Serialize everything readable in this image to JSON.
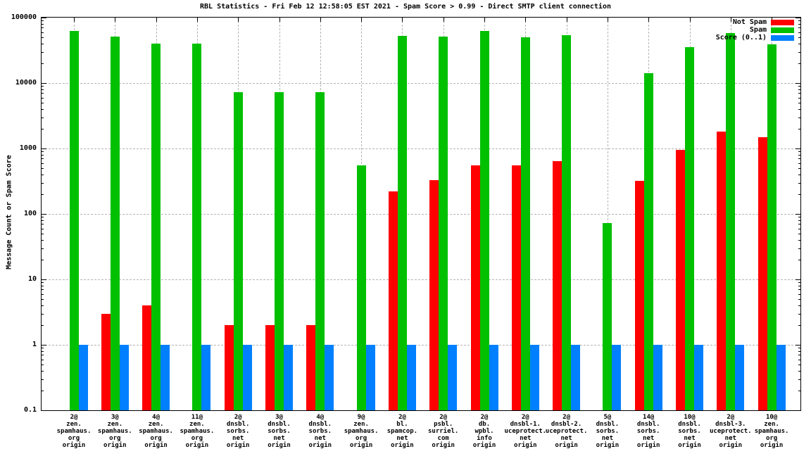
{
  "title": "RBL Statistics - Fri Feb 12 12:58:05 EST 2021 - Spam Score > 0.99 - Direct SMTP client connection",
  "chart_data": {
    "type": "bar",
    "title": "RBL Statistics - Fri Feb 12 12:58:05 EST 2021 - Spam Score > 0.99 - Direct SMTP client connection",
    "ylabel": "Message Count or Spam Score",
    "xlabel": "",
    "yscale": "log",
    "ylim": [
      0.1,
      100000
    ],
    "yticks": [
      "100000",
      "10000",
      "1000",
      "100",
      "10",
      "1",
      "0.1"
    ],
    "grid": true,
    "legend_position": "top-right-inside",
    "colors": {
      "not_spam": "#ff0000",
      "spam": "#00c000",
      "score": "#0080ff",
      "grid": "#b4b4b4"
    },
    "categories": [
      [
        "2@",
        "zen.",
        "spamhaus.",
        "org",
        "origin"
      ],
      [
        "3@",
        "zen.",
        "spamhaus.",
        "org",
        "origin"
      ],
      [
        "4@",
        "zen.",
        "spamhaus.",
        "org",
        "origin"
      ],
      [
        "11@",
        "zen.",
        "spamhaus.",
        "org",
        "origin"
      ],
      [
        "2@",
        "dnsbl.",
        "sorbs.",
        "net",
        "origin"
      ],
      [
        "3@",
        "dnsbl.",
        "sorbs.",
        "net",
        "origin"
      ],
      [
        "4@",
        "dnsbl.",
        "sorbs.",
        "net",
        "origin"
      ],
      [
        "9@",
        "zen.",
        "spamhaus.",
        "org",
        "origin"
      ],
      [
        "2@",
        "bl.",
        "spamcop.",
        "net",
        "origin"
      ],
      [
        "2@",
        "psbl.",
        "surriel.",
        "com",
        "origin"
      ],
      [
        "2@",
        "db.",
        "wpbl.",
        "info",
        "origin"
      ],
      [
        "2@",
        "dnsbl-1.",
        "uceprotect.",
        "net",
        "origin"
      ],
      [
        "2@",
        "dnsbl-2.",
        "uceprotect.",
        "net",
        "origin"
      ],
      [
        "5@",
        "dnsbl.",
        "sorbs.",
        "net",
        "origin"
      ],
      [
        "14@",
        "dnsbl.",
        "sorbs.",
        "net",
        "origin"
      ],
      [
        "10@",
        "dnsbl.",
        "sorbs.",
        "net",
        "origin"
      ],
      [
        "2@",
        "dnsbl-3.",
        "uceprotect.",
        "net",
        "origin"
      ],
      [
        "10@",
        "zen.",
        "spamhaus.",
        "org",
        "origin"
      ]
    ],
    "series": [
      {
        "name": "Not Spam",
        "color": "#ff0000",
        "values": [
          null,
          3,
          4,
          null,
          2,
          2,
          2,
          null,
          220,
          330,
          550,
          550,
          640,
          null,
          320,
          950,
          1800,
          1500
        ]
      },
      {
        "name": "Spam",
        "color": "#00c000",
        "values": [
          63000,
          51000,
          40000,
          40000,
          7200,
          7200,
          7200,
          550,
          52000,
          51000,
          62000,
          50000,
          54000,
          72,
          14000,
          35000,
          58000,
          39000
        ]
      },
      {
        "name": "Score (0..1)",
        "color": "#0080ff",
        "values": [
          1,
          1,
          1,
          1,
          1,
          1,
          1,
          1,
          1,
          1,
          1,
          1,
          1,
          1,
          1,
          1,
          1,
          1
        ]
      }
    ]
  }
}
